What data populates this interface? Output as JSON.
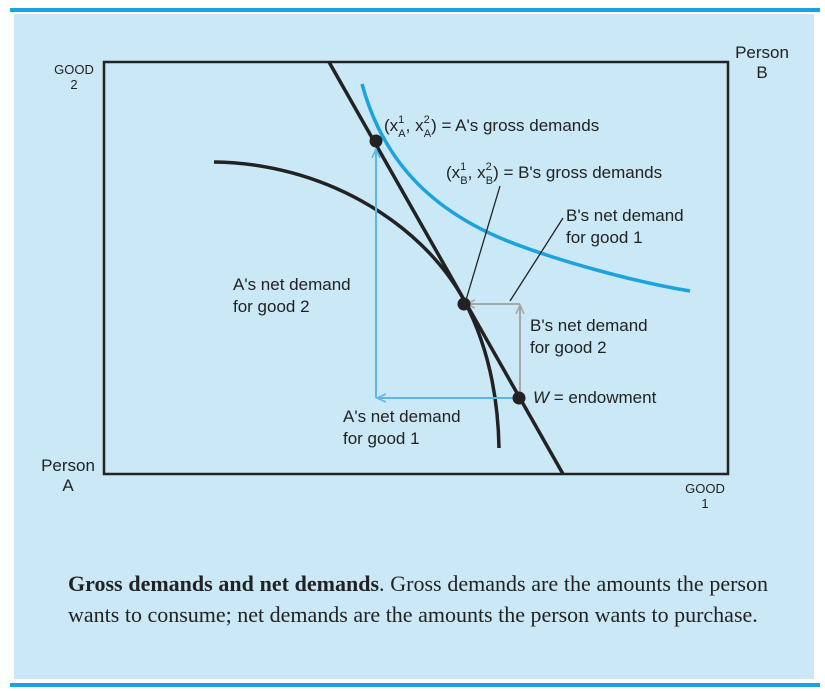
{
  "figure": {
    "corner_labels": {
      "good2_line1": "GOOD",
      "good2_line2": "2",
      "good1_line1": "GOOD",
      "good1_line2": "1",
      "personA_line1": "Person",
      "personA_line2": "A",
      "personB_line1": "Person",
      "personB_line2": "B"
    },
    "labels": {
      "a_gross_prefix": "(x",
      "a_gross_sup1": "1",
      "a_gross_sub1": "A",
      "a_gross_comma": ", x",
      "a_gross_sup2": "2",
      "a_gross_sub2": "A",
      "a_gross_suffix": ") = A's gross demands",
      "b_gross_prefix": "(x",
      "b_gross_sup1": "1",
      "b_gross_sub1": "B",
      "b_gross_comma": ", x",
      "b_gross_sup2": "2",
      "b_gross_sub2": "B",
      "b_gross_suffix": ") = B's gross demands",
      "b_net_good1_line1": "B's net demand",
      "b_net_good1_line2": "for good 1",
      "a_net_good2_line1": "A's net demand",
      "a_net_good2_line2": "for good 2",
      "b_net_good2_line1": "B's net demand",
      "b_net_good2_line2": "for good 2",
      "endowment_symbol": "W",
      "endowment_text": " = endowment",
      "a_net_good1_line1": "A's net demand",
      "a_net_good1_line2": "for good 1"
    },
    "colors": {
      "indifference_a": "#1aa3de",
      "arrows_a": "#5bb8e6",
      "arrows_b": "#a6a6a6",
      "curves": "#222222",
      "panel": "#cbe8f7",
      "rule": "#1aa3de"
    }
  },
  "caption": {
    "bold": "Gross demands and net demands",
    "text": ". Gross demands are the amounts the person wants to consume; net demands are the amounts the person wants to purchase."
  }
}
